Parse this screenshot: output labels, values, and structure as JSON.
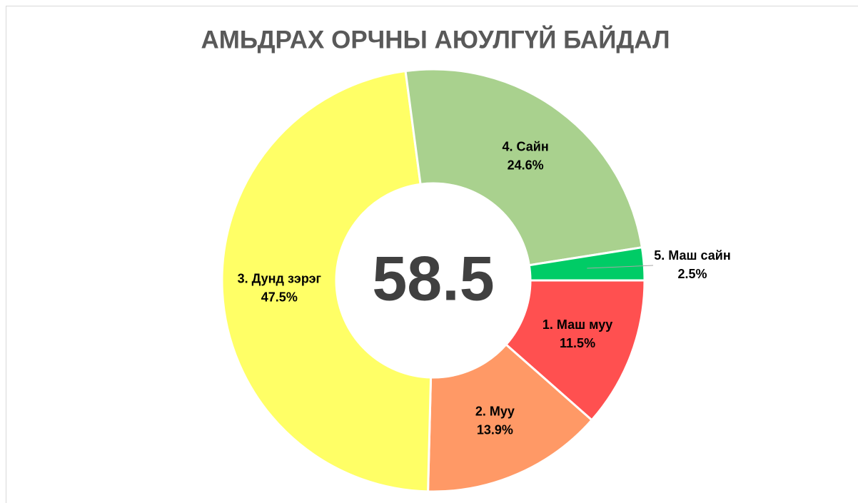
{
  "chart_data": {
    "type": "donut",
    "title": "АМЬДРАХ ОРЧНЫ АЮУЛГҮЙ БАЙДАЛ",
    "center_value": 58.5,
    "categories": [
      "1. Маш муу",
      "2. Муу",
      "3. Дунд зэрэг",
      "4. Сайн",
      "5. Маш сайн"
    ],
    "values": [
      11.5,
      13.9,
      47.5,
      24.6,
      2.5
    ],
    "value_labels": [
      "11.5%",
      "13.9%",
      "47.5%",
      "24.6%",
      "2.5%"
    ],
    "colors": [
      "#ff5050",
      "#ff9966",
      "#ffff66",
      "#a9d18e",
      "#00cc66"
    ]
  }
}
